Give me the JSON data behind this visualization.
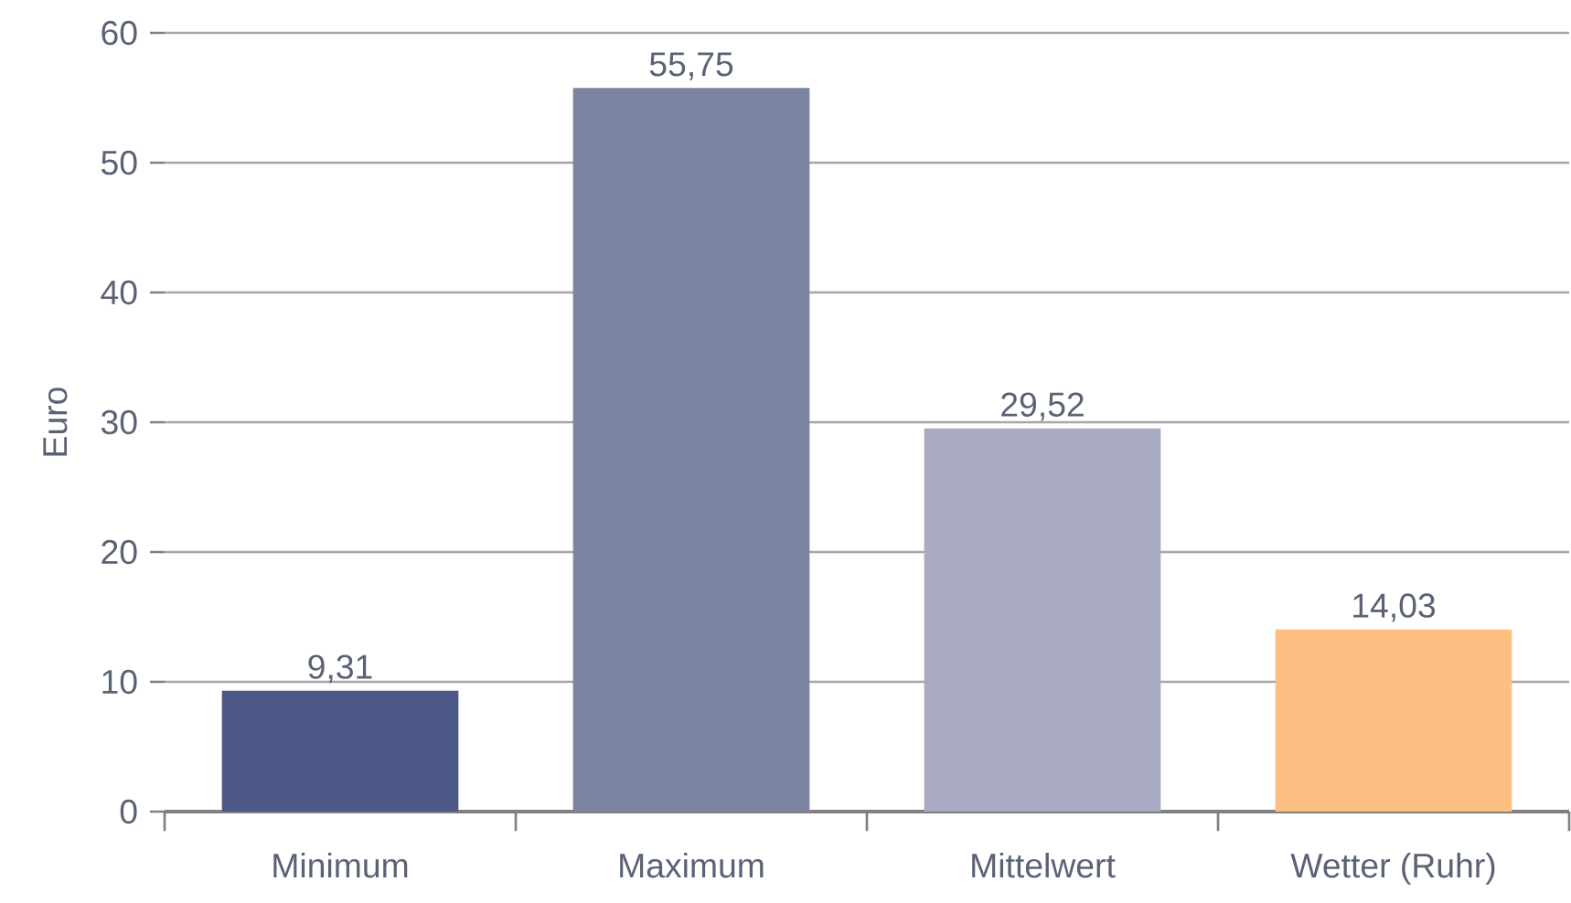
{
  "chart_data": {
    "type": "bar",
    "ylabel": "Euro",
    "categories": [
      "Minimum",
      "Maximum",
      "Mittelwert",
      "Wetter (Ruhr)"
    ],
    "values": [
      9.31,
      55.75,
      29.52,
      14.03
    ],
    "colors": [
      "#4c5886",
      "#7b84a0",
      "#a7aac0",
      "#fdbf82"
    ],
    "value_labels": [
      "9,31",
      "55,75",
      "29,52",
      "14,03"
    ],
    "ylim": [
      0,
      60
    ],
    "yticks": [
      0,
      10,
      20,
      30,
      40,
      50,
      60
    ],
    "grid": "y"
  }
}
